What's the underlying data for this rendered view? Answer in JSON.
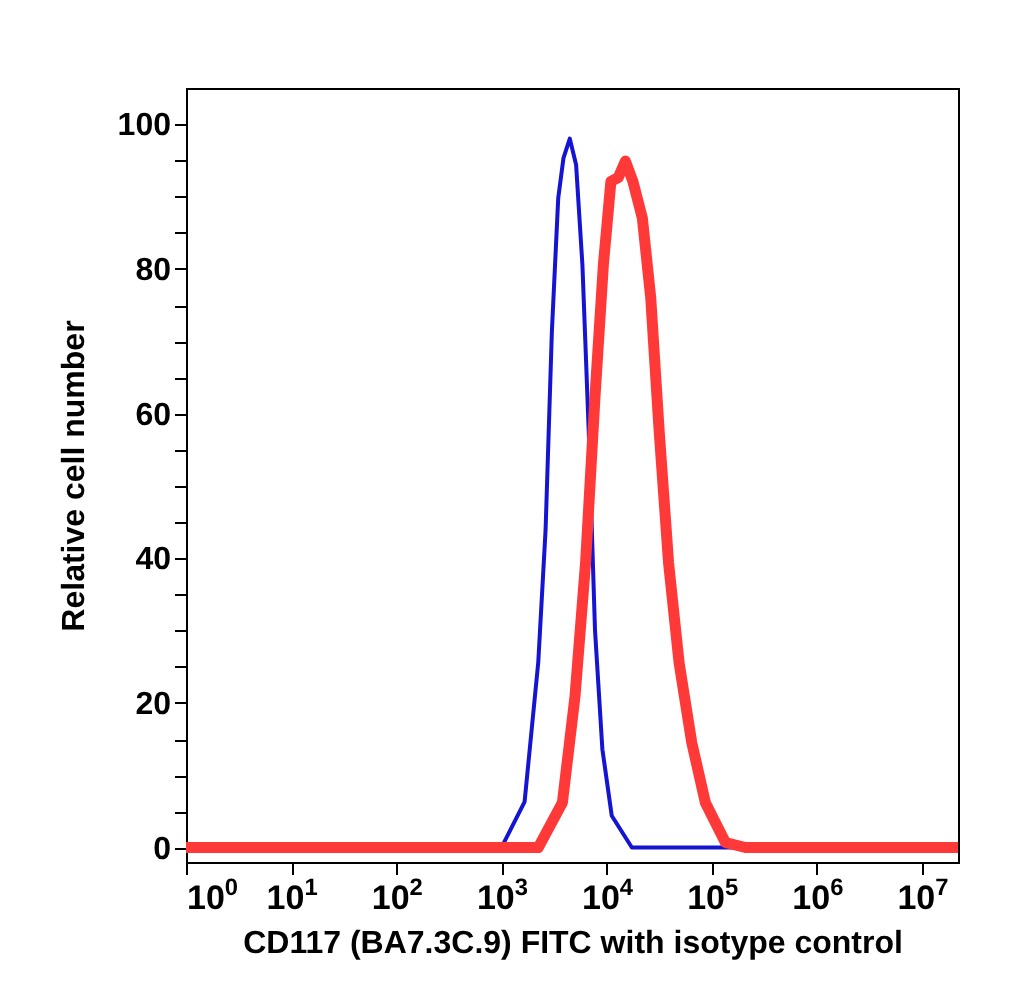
{
  "chart_data": {
    "type": "line",
    "xlabel": "CD117 (BA7.3C.9) FITC with isotype control",
    "ylabel": "Relative cell number",
    "log": "x",
    "grid": false,
    "marker": "none",
    "line_style": "solid",
    "xlim": [
      1,
      22000000
    ],
    "ylim": [
      -2,
      105
    ],
    "xticks": [
      {
        "value": 1,
        "label": "10$^{0}$"
      },
      {
        "value": 10,
        "label": "10$^{1}$"
      },
      {
        "value": 100,
        "label": "10$^{2}$"
      },
      {
        "value": 1000,
        "label": "10$^{3}$"
      },
      {
        "value": 10000,
        "label": "10$^{4}$"
      },
      {
        "value": 100000,
        "label": "10$^{5}$"
      },
      {
        "value": 1000000,
        "label": "10$^{6}$"
      },
      {
        "value": 10000000,
        "label": "10$^{7}$"
      }
    ],
    "yticks": [
      0,
      {
        "value": 5,
        "label": null
      },
      {
        "value": 10,
        "label": null
      },
      {
        "value": 15,
        "label": null
      },
      20,
      {
        "value": 25,
        "label": null
      },
      {
        "value": 30,
        "label": null
      },
      {
        "value": 35,
        "label": null
      },
      40,
      {
        "value": 45,
        "label": null
      },
      {
        "value": 50,
        "label": null
      },
      {
        "value": 55,
        "label": null
      },
      60,
      {
        "value": 65,
        "label": null
      },
      {
        "value": 70,
        "label": null
      },
      {
        "value": 75,
        "label": null
      },
      80,
      {
        "value": 85,
        "label": null
      },
      {
        "value": 90,
        "label": null
      },
      {
        "value": 95,
        "label": null
      },
      100
    ],
    "series": [
      {
        "color": "#1414d2",
        "x": [
          1,
          1000,
          1660,
          2240,
          2630,
          3020,
          3470,
          3890,
          4470,
          5130,
          5890,
          6760,
          7760,
          9120,
          11200,
          17400,
          22000000
        ],
        "values": [
          0,
          0,
          6.3,
          25.6,
          43.9,
          71.4,
          89.8,
          95.3,
          98,
          94.4,
          80.6,
          57.7,
          30.1,
          13.6,
          4.4,
          0,
          0
        ]
      },
      {
        "color": "#ff3838",
        "x": [
          1,
          2240,
          3800,
          5010,
          6310,
          7760,
          9330,
          11000,
          12900,
          15100,
          17800,
          21900,
          26300,
          31600,
          38900,
          49000,
          64600,
          87100,
          135000,
          209000,
          22000000
        ],
        "values": [
          0,
          0,
          6.2,
          20.9,
          39.3,
          62.3,
          80.6,
          92.1,
          92.6,
          94.9,
          92.1,
          87,
          76,
          57.7,
          39.3,
          25.5,
          14.5,
          6.2,
          0.7,
          0,
          0
        ]
      }
    ]
  }
}
